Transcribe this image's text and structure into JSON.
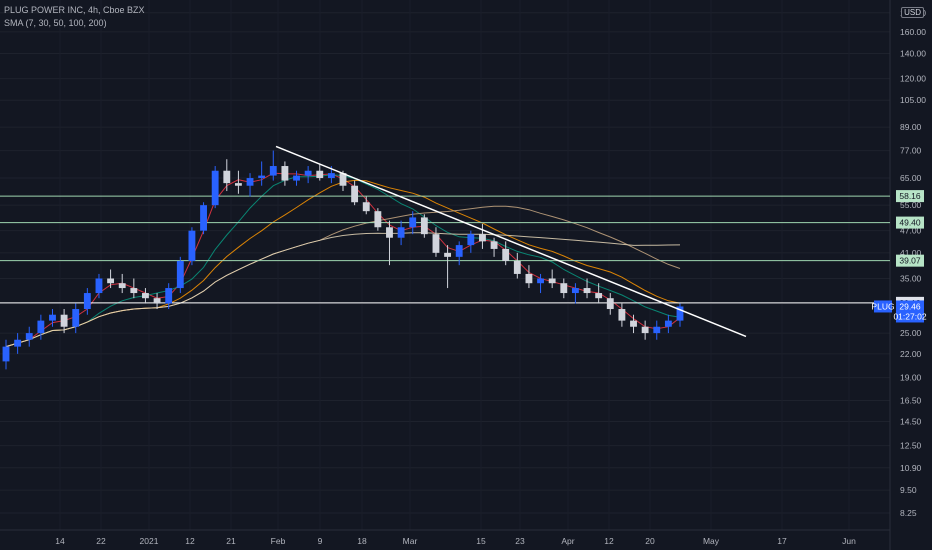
{
  "header": {
    "symbol_line": "PLUG POWER INC, 4h, Cboe BZX",
    "sma_line": "SMA (7, 30, 50, 100, 200)",
    "currency": "USD"
  },
  "chart_data": {
    "type": "candlestick",
    "scale": "log",
    "y_ticks": [
      "180.00",
      "160.00",
      "140.00",
      "120.00",
      "105.00",
      "89.00",
      "77.00",
      "65.00",
      "55.00",
      "47.00",
      "41.00",
      "35.00",
      "30.00",
      "25.00",
      "22.00",
      "19.00",
      "16.50",
      "14.50",
      "12.50",
      "10.90",
      "9.50",
      "8.25"
    ],
    "x_ticks": [
      "14",
      "22",
      "2021",
      "12",
      "21",
      "Feb",
      "9",
      "18",
      "Mar",
      "15",
      "23",
      "Apr",
      "12",
      "20",
      "May",
      "17",
      "Jun"
    ],
    "horizontal_levels": [
      {
        "price": 58.16,
        "label": "58.16",
        "color": "#9fd6b0"
      },
      {
        "price": 49.4,
        "label": "49.40",
        "color": "#9fd6b0"
      },
      {
        "price": 39.07,
        "label": "39.07",
        "color": "#9fd6b0"
      },
      {
        "price": 30.12,
        "label": "30.12",
        "color": "#ffffff"
      }
    ],
    "trendline": {
      "start": {
        "date": "Feb 1",
        "price": 79
      },
      "end": {
        "date": "May 1",
        "price": 24.5
      },
      "color": "#ffffff"
    },
    "last_price": {
      "symbol": "PLUG",
      "price": "29.46",
      "countdown": "01:27:02",
      "color": "#2962ff"
    },
    "colors": {
      "up": "#2962ff",
      "down": "#d1d4dc",
      "sma7": "#f23645",
      "sma30": "#089981",
      "sma50": "#ff9800",
      "sma100": "#c8a882",
      "sma200": "#e6d7b8"
    },
    "candles": [
      {
        "x": "Jan 6",
        "o": 21,
        "h": 24,
        "l": 20,
        "c": 23
      },
      {
        "x": "Jan 8",
        "o": 23,
        "h": 25,
        "l": 22,
        "c": 24
      },
      {
        "x": "Jan 11",
        "o": 24,
        "h": 26,
        "l": 23,
        "c": 25
      },
      {
        "x": "Jan 13",
        "o": 25,
        "h": 28,
        "l": 24,
        "c": 27
      },
      {
        "x": "Jan 14",
        "o": 27,
        "h": 29,
        "l": 26,
        "c": 28
      },
      {
        "x": "Jan 15",
        "o": 28,
        "h": 29,
        "l": 25,
        "c": 26
      },
      {
        "x": "Jan 19",
        "o": 26,
        "h": 30,
        "l": 25,
        "c": 29
      },
      {
        "x": "Jan 20",
        "o": 29,
        "h": 33,
        "l": 28,
        "c": 32
      },
      {
        "x": "Jan 21",
        "o": 32,
        "h": 36,
        "l": 31,
        "c": 35
      },
      {
        "x": "Jan 22",
        "o": 35,
        "h": 37,
        "l": 33,
        "c": 34
      },
      {
        "x": "Jan 25",
        "o": 34,
        "h": 36,
        "l": 32,
        "c": 33
      },
      {
        "x": "Jan 26",
        "o": 33,
        "h": 35,
        "l": 31,
        "c": 32
      },
      {
        "x": "Jan 27",
        "o": 32,
        "h": 33,
        "l": 30,
        "c": 31
      },
      {
        "x": "Jan 29",
        "o": 31,
        "h": 32,
        "l": 29,
        "c": 30
      },
      {
        "x": "Jan 30",
        "o": 30,
        "h": 34,
        "l": 29,
        "c": 33
      },
      {
        "x": "Jan 31",
        "o": 33,
        "h": 40,
        "l": 32,
        "c": 39
      },
      {
        "x": "Feb 1",
        "o": 39,
        "h": 48,
        "l": 38,
        "c": 47
      },
      {
        "x": "Feb 2",
        "o": 47,
        "h": 56,
        "l": 46,
        "c": 55
      },
      {
        "x": "Feb 3",
        "o": 55,
        "h": 70,
        "l": 54,
        "c": 68
      },
      {
        "x": "Feb 4",
        "o": 68,
        "h": 73,
        "l": 60,
        "c": 63
      },
      {
        "x": "Feb 5",
        "o": 63,
        "h": 68,
        "l": 59,
        "c": 62
      },
      {
        "x": "Feb 6",
        "o": 62,
        "h": 67,
        "l": 58,
        "c": 65
      },
      {
        "x": "Feb 7",
        "o": 65,
        "h": 72,
        "l": 62,
        "c": 66
      },
      {
        "x": "Feb 8",
        "o": 66,
        "h": 77,
        "l": 64,
        "c": 70
      },
      {
        "x": "Feb 9",
        "o": 70,
        "h": 72,
        "l": 62,
        "c": 64
      },
      {
        "x": "Feb 10",
        "o": 64,
        "h": 68,
        "l": 62,
        "c": 66
      },
      {
        "x": "Feb 11",
        "o": 66,
        "h": 70,
        "l": 63,
        "c": 68
      },
      {
        "x": "Feb 12",
        "o": 68,
        "h": 71,
        "l": 64,
        "c": 65
      },
      {
        "x": "Feb 15",
        "o": 65,
        "h": 70,
        "l": 63,
        "c": 67
      },
      {
        "x": "Feb 16",
        "o": 67,
        "h": 68,
        "l": 60,
        "c": 62
      },
      {
        "x": "Feb 17",
        "o": 62,
        "h": 64,
        "l": 55,
        "c": 56
      },
      {
        "x": "Feb 18",
        "o": 56,
        "h": 58,
        "l": 52,
        "c": 53
      },
      {
        "x": "Feb 19",
        "o": 53,
        "h": 54,
        "l": 47,
        "c": 48
      },
      {
        "x": "Feb 22",
        "o": 48,
        "h": 50,
        "l": 38,
        "c": 45
      },
      {
        "x": "Feb 23",
        "o": 45,
        "h": 50,
        "l": 43,
        "c": 48
      },
      {
        "x": "Feb 24",
        "o": 48,
        "h": 53,
        "l": 46,
        "c": 51
      },
      {
        "x": "Feb 25",
        "o": 51,
        "h": 52,
        "l": 45,
        "c": 46
      },
      {
        "x": "Feb 26",
        "o": 46,
        "h": 48,
        "l": 40,
        "c": 41
      },
      {
        "x": "Mar 1",
        "o": 41,
        "h": 43,
        "l": 33,
        "c": 40
      },
      {
        "x": "Mar 3",
        "o": 40,
        "h": 44,
        "l": 38,
        "c": 43
      },
      {
        "x": "Mar 5",
        "o": 43,
        "h": 47,
        "l": 41,
        "c": 46
      },
      {
        "x": "Mar 8",
        "o": 46,
        "h": 49,
        "l": 42,
        "c": 44
      },
      {
        "x": "Mar 10",
        "o": 44,
        "h": 45,
        "l": 40,
        "c": 42
      },
      {
        "x": "Mar 12",
        "o": 42,
        "h": 44,
        "l": 38,
        "c": 39
      },
      {
        "x": "Mar 15",
        "o": 39,
        "h": 41,
        "l": 35,
        "c": 36
      },
      {
        "x": "Mar 17",
        "o": 36,
        "h": 38,
        "l": 33,
        "c": 34
      },
      {
        "x": "Mar 19",
        "o": 34,
        "h": 36,
        "l": 32,
        "c": 35
      },
      {
        "x": "Mar 22",
        "o": 35,
        "h": 37,
        "l": 33,
        "c": 34
      },
      {
        "x": "Mar 24",
        "o": 34,
        "h": 35,
        "l": 31,
        "c": 32
      },
      {
        "x": "Mar 26",
        "o": 32,
        "h": 34,
        "l": 30,
        "c": 33
      },
      {
        "x": "Mar 29",
        "o": 33,
        "h": 35,
        "l": 31,
        "c": 32
      },
      {
        "x": "Apr 1",
        "o": 32,
        "h": 34,
        "l": 30,
        "c": 31
      },
      {
        "x": "Apr 5",
        "o": 31,
        "h": 32,
        "l": 28,
        "c": 29
      },
      {
        "x": "Apr 8",
        "o": 29,
        "h": 30,
        "l": 26,
        "c": 27
      },
      {
        "x": "Apr 12",
        "o": 27,
        "h": 28,
        "l": 25,
        "c": 26
      },
      {
        "x": "Apr 15",
        "o": 26,
        "h": 27,
        "l": 24,
        "c": 25
      },
      {
        "x": "Apr 19",
        "o": 25,
        "h": 27,
        "l": 24,
        "c": 26
      },
      {
        "x": "Apr 21",
        "o": 26,
        "h": 28,
        "l": 25,
        "c": 27
      },
      {
        "x": "Apr 23",
        "o": 27,
        "h": 30,
        "l": 26,
        "c": 29.46
      }
    ]
  }
}
